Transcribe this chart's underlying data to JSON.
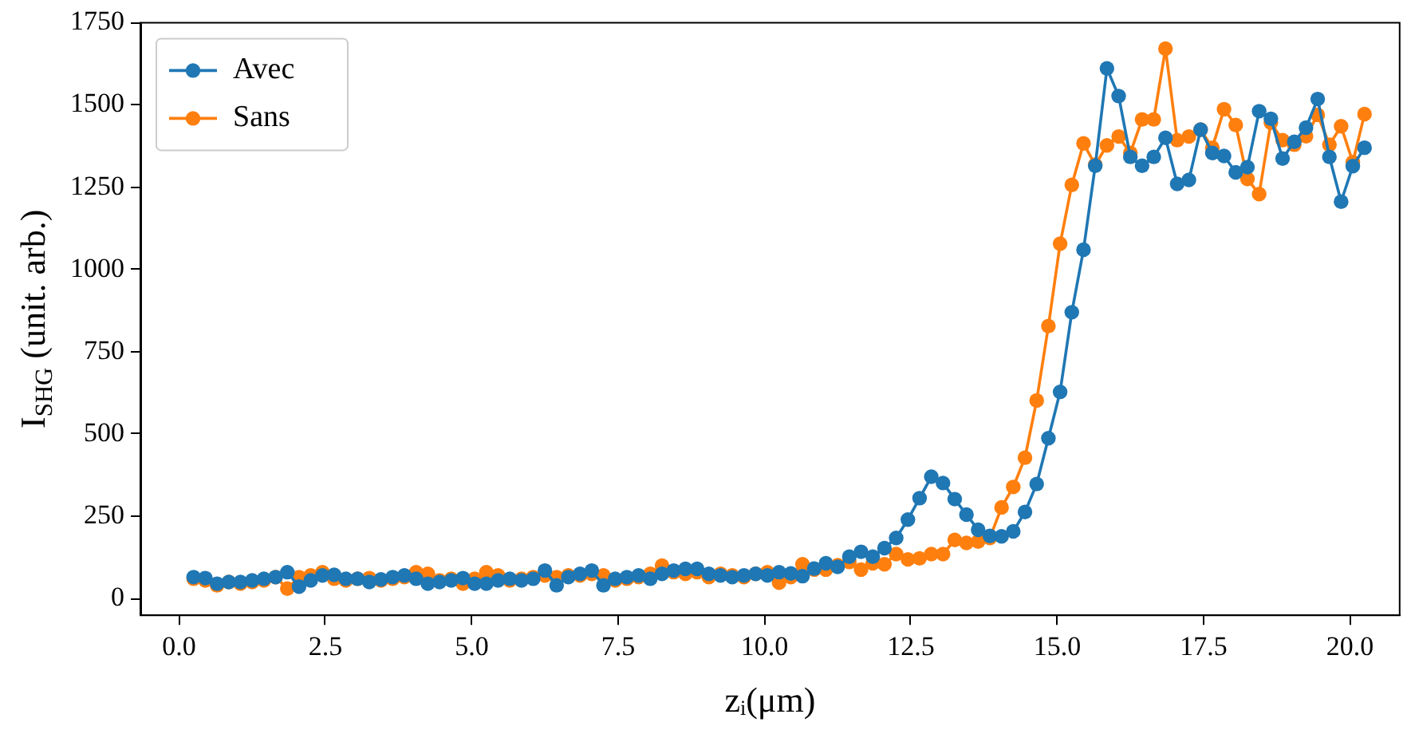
{
  "chart_data": {
    "type": "line",
    "xlabel": "zᵢ(μm)",
    "ylabel": "I$_{SHG}$ (unit. arb.)",
    "x": [
      0.25,
      0.45,
      0.65,
      0.85,
      1.05,
      1.25,
      1.45,
      1.65,
      1.85,
      2.05,
      2.25,
      2.45,
      2.65,
      2.85,
      3.05,
      3.25,
      3.45,
      3.65,
      3.85,
      4.05,
      4.25,
      4.45,
      4.65,
      4.85,
      5.05,
      5.25,
      5.45,
      5.65,
      5.85,
      6.05,
      6.25,
      6.45,
      6.65,
      6.85,
      7.05,
      7.25,
      7.45,
      7.65,
      7.85,
      8.05,
      8.25,
      8.45,
      8.65,
      8.85,
      9.05,
      9.25,
      9.45,
      9.65,
      9.85,
      10.05,
      10.25,
      10.45,
      10.65,
      10.85,
      11.05,
      11.25,
      11.45,
      11.65,
      11.85,
      12.05,
      12.25,
      12.45,
      12.65,
      12.85,
      13.05,
      13.25,
      13.45,
      13.65,
      13.85,
      14.05,
      14.25,
      14.45,
      14.65,
      14.85,
      15.05,
      15.25,
      15.45,
      15.65,
      15.85,
      16.05,
      16.25,
      16.45,
      16.65,
      16.85,
      17.05,
      17.25,
      17.45,
      17.65,
      17.85,
      18.05,
      18.25,
      18.45,
      18.65,
      18.85,
      19.05,
      19.25,
      19.45,
      19.65,
      19.85,
      20.05,
      20.25
    ],
    "series": [
      {
        "name": "Avec",
        "color": "#1f77b4",
        "values": [
          65,
          62,
          45,
          50,
          50,
          55,
          60,
          65,
          80,
          36,
          55,
          70,
          72,
          60,
          60,
          50,
          58,
          65,
          70,
          60,
          45,
          50,
          55,
          62,
          45,
          45,
          55,
          60,
          55,
          60,
          85,
          40,
          65,
          75,
          85,
          40,
          60,
          65,
          70,
          60,
          75,
          85,
          90,
          90,
          75,
          70,
          65,
          70,
          75,
          70,
          80,
          76,
          68,
          91,
          107,
          96,
          127,
          142,
          127,
          153,
          184,
          240,
          305,
          370,
          351,
          302,
          255,
          209,
          190,
          189,
          204,
          263,
          348,
          487,
          628,
          870,
          1060,
          1315,
          1611,
          1527,
          1342,
          1315,
          1342,
          1400,
          1260,
          1272,
          1425,
          1354,
          1345,
          1295,
          1311,
          1481,
          1458,
          1337,
          1388,
          1431,
          1518,
          1342,
          1206,
          1314,
          1370
        ]
      },
      {
        "name": "Sans",
        "color": "#ff7f0e",
        "values": [
          60,
          55,
          40,
          50,
          45,
          50,
          55,
          65,
          30,
          65,
          70,
          80,
          60,
          55,
          60,
          62,
          55,
          60,
          65,
          80,
          75,
          55,
          60,
          45,
          60,
          80,
          70,
          55,
          60,
          65,
          70,
          65,
          70,
          70,
          75,
          70,
          55,
          60,
          65,
          75,
          100,
          80,
          75,
          80,
          65,
          75,
          70,
          65,
          75,
          80,
          48,
          65,
          104,
          88,
          88,
          101,
          111,
          88,
          107,
          104,
          135,
          119,
          122,
          135,
          135,
          178,
          169,
          173,
          184,
          277,
          339,
          428,
          602,
          828,
          1078,
          1257,
          1383,
          1318,
          1377,
          1404,
          1354,
          1456,
          1456,
          1671,
          1393,
          1404,
          1425,
          1370,
          1487,
          1439,
          1275,
          1229,
          1446,
          1393,
          1379,
          1405,
          1470,
          1379,
          1435,
          1326,
          1472
        ]
      }
    ],
    "xlim": [
      -0.66,
      20.85
    ],
    "ylim": [
      -51,
      1750
    ],
    "xticks": [
      {
        "value": 0,
        "label": "0.0"
      },
      {
        "value": 2.5,
        "label": "2.5"
      },
      {
        "value": 5,
        "label": "5.0"
      },
      {
        "value": 7.5,
        "label": "7.5"
      },
      {
        "value": 10,
        "label": "10.0"
      },
      {
        "value": 12.5,
        "label": "12.5"
      },
      {
        "value": 15,
        "label": "15.0"
      },
      {
        "value": 17.5,
        "label": "17.5"
      },
      {
        "value": 20,
        "label": "20.0"
      }
    ],
    "yticks": [
      0,
      250,
      500,
      750,
      1000,
      1250,
      1500,
      1750
    ],
    "grid": false,
    "legend": "top left",
    "marker": "circle",
    "line_style": "solid"
  }
}
